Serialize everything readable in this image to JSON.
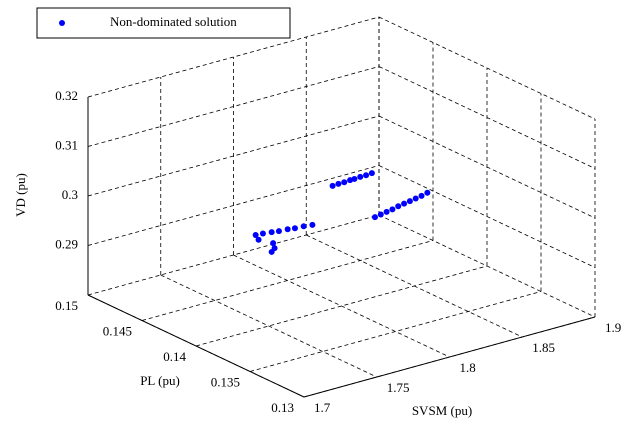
{
  "chart_data": {
    "type": "scatter3d",
    "xlabel": "SVSM (pu)",
    "ylabel": "PL (pu)",
    "zlabel": "VD (pu)",
    "xlim": [
      1.7,
      1.9
    ],
    "xticks": [
      1.7,
      1.75,
      1.8,
      1.85,
      1.9
    ],
    "ylim": [
      0.13,
      0.15
    ],
    "yticks": [
      0.13,
      0.135,
      0.14,
      0.145,
      0.15
    ],
    "zlim": [
      0.28,
      0.32
    ],
    "zticks": [
      0.29,
      0.3,
      0.31,
      0.32
    ],
    "grid": true,
    "legend": "upper left",
    "series": [
      {
        "name": "Non-dominated solution",
        "color": "#0000ff",
        "x": [
          1.741,
          1.746,
          1.752,
          1.757,
          1.763,
          1.768,
          1.774,
          1.78,
          1.743,
          1.753,
          1.754,
          1.752,
          1.831,
          1.835,
          1.839,
          1.843,
          1.846,
          1.85,
          1.854,
          1.858,
          1.823,
          1.827,
          1.831,
          1.835,
          1.839,
          1.843,
          1.847,
          1.851,
          1.855,
          1.859
        ],
        "y": [
          0.14,
          0.14,
          0.14,
          0.14,
          0.14,
          0.14,
          0.14,
          0.14,
          0.14,
          0.14,
          0.14,
          0.14,
          0.145,
          0.145,
          0.145,
          0.145,
          0.145,
          0.145,
          0.145,
          0.145,
          0.14,
          0.14,
          0.14,
          0.14,
          0.14,
          0.14,
          0.14,
          0.14,
          0.14,
          0.14
        ],
        "z": [
          0.2991,
          0.299,
          0.2988,
          0.2986,
          0.2985,
          0.2983,
          0.2982,
          0.298,
          0.298,
          0.2965,
          0.2954,
          0.2948,
          0.2966,
          0.2967,
          0.2967,
          0.2968,
          0.2968,
          0.2969,
          0.2969,
          0.297,
          0.2961,
          0.2963,
          0.2965,
          0.2967,
          0.297,
          0.2972,
          0.2974,
          0.2976,
          0.2978,
          0.2981
        ]
      }
    ]
  }
}
